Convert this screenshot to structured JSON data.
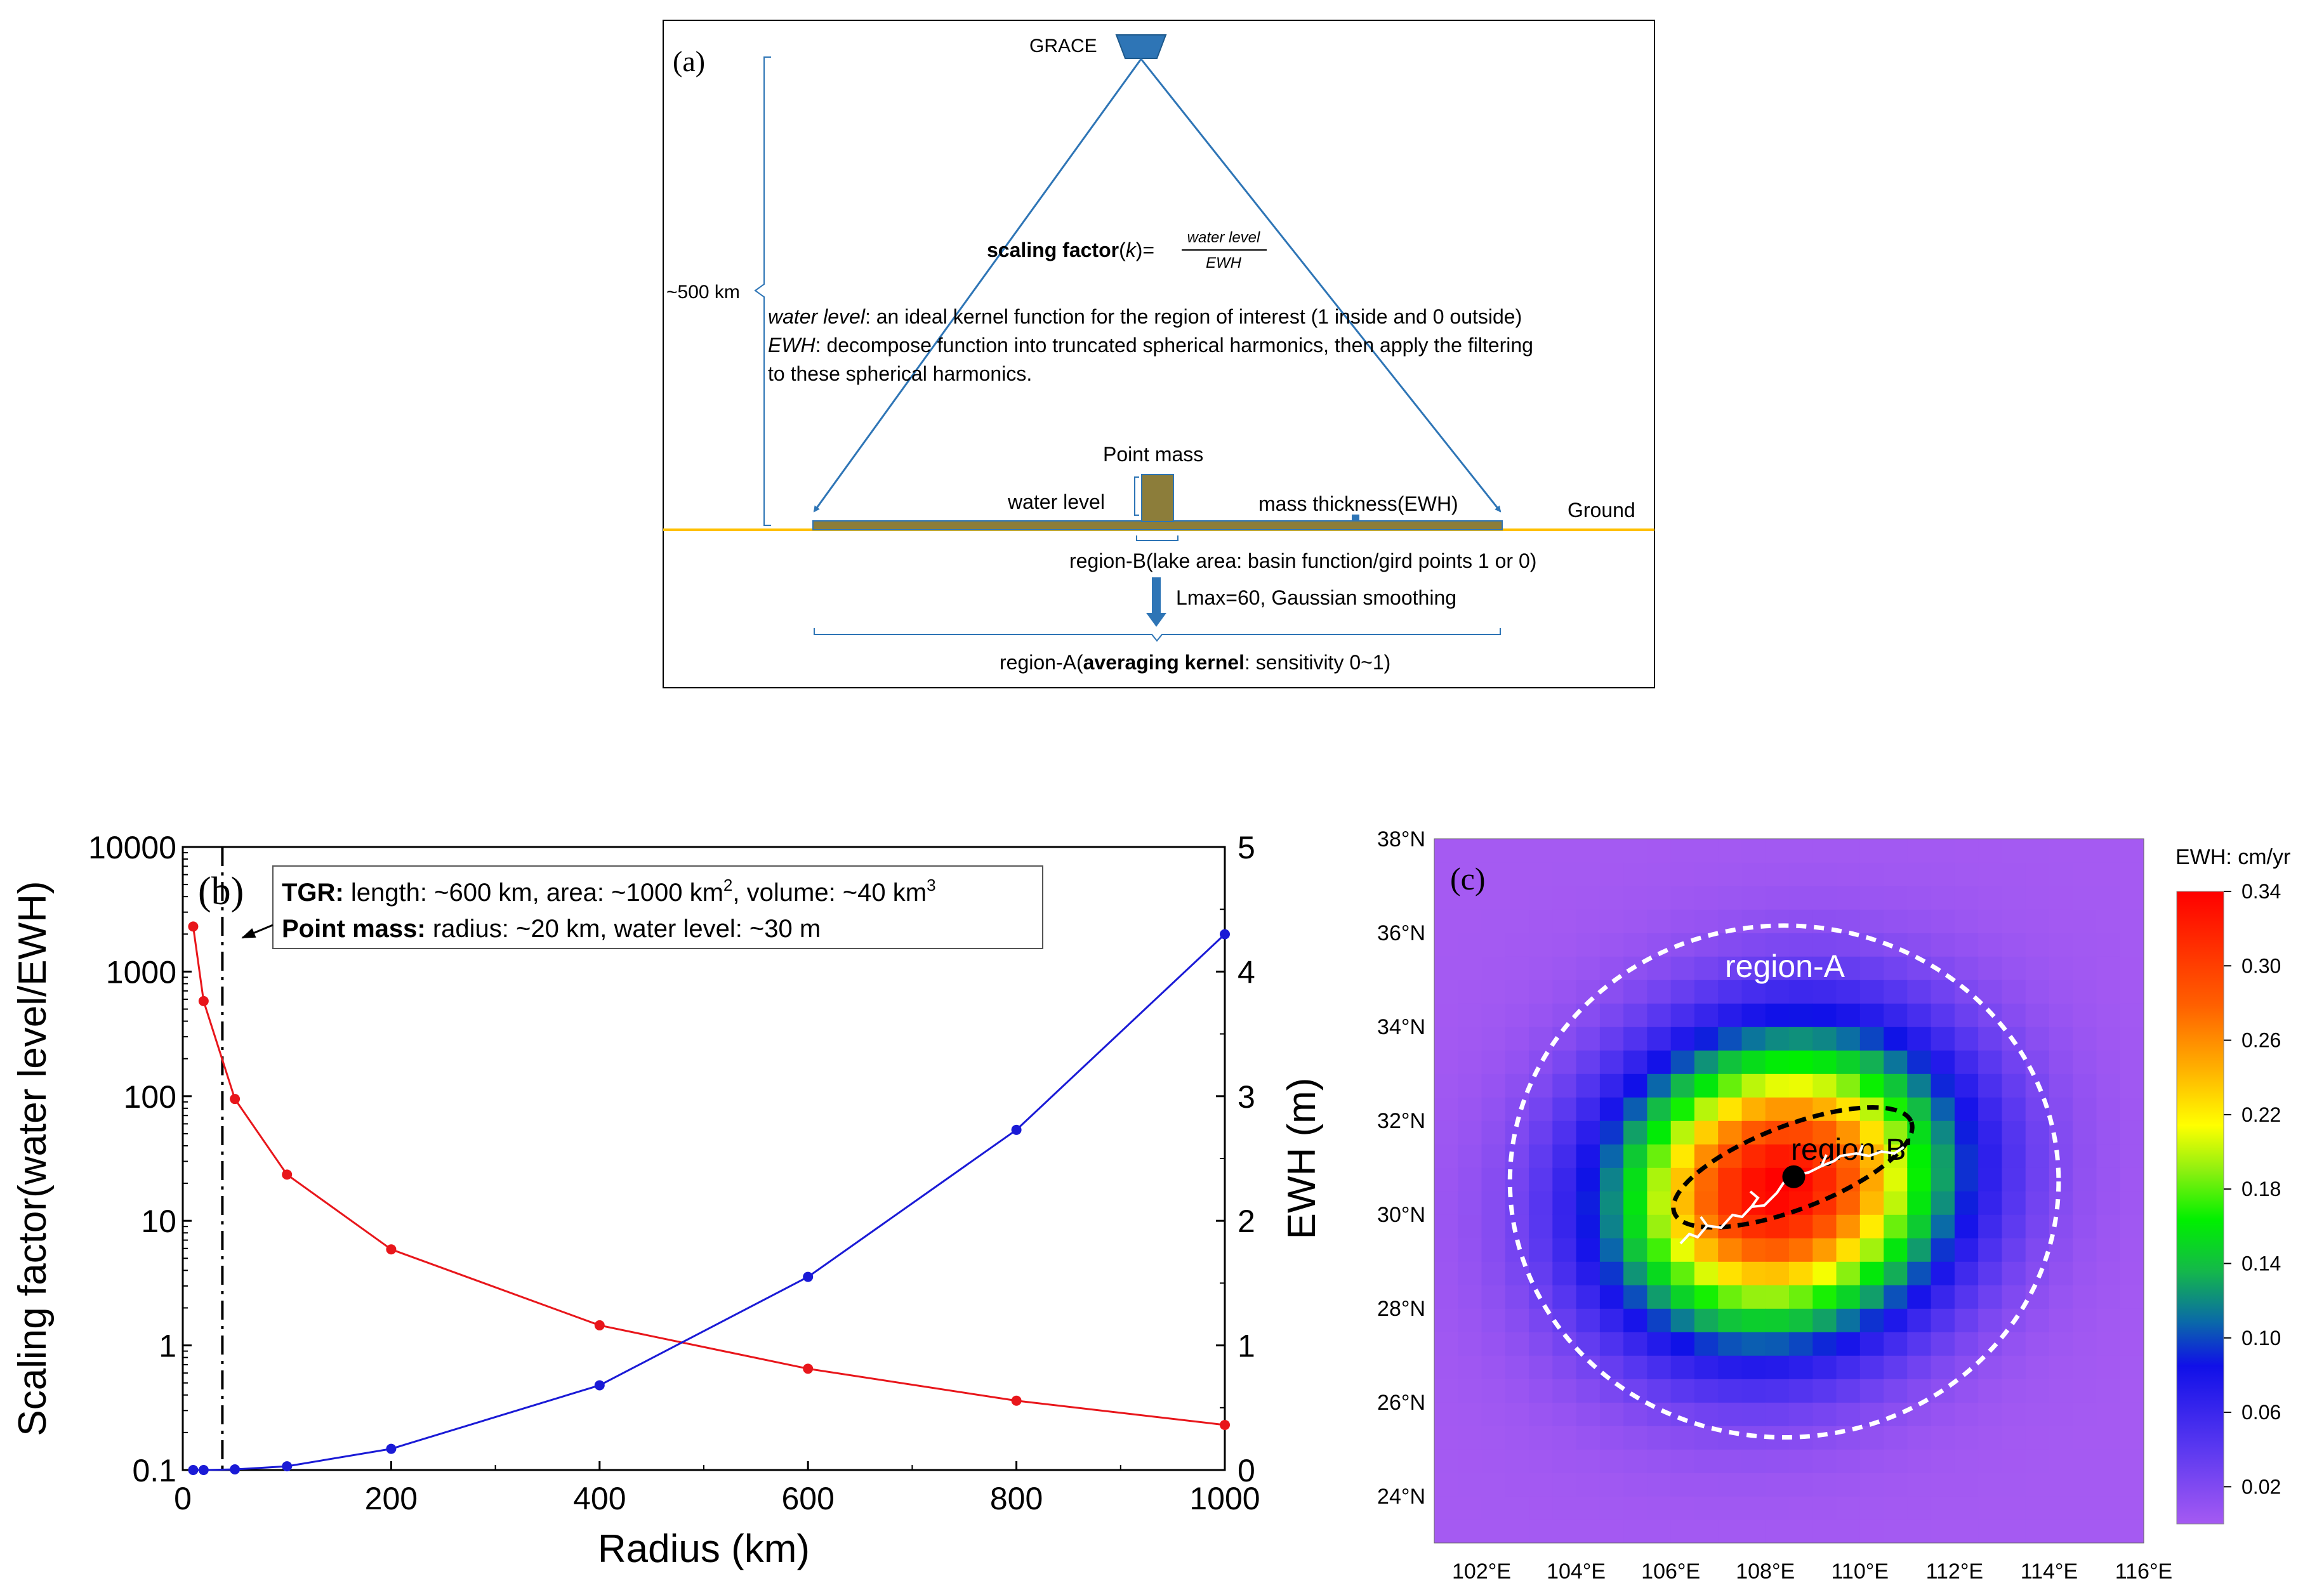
{
  "panel_a": {
    "label": "(a)",
    "satellite": "GRACE",
    "height_label": "~500 km",
    "sf_bold": "scaling factor",
    "sf_open": "(",
    "sf_k": "k",
    "sf_close": ")=",
    "frac_num": "water level",
    "frac_den": "EWH",
    "def1_term": "water level",
    "def1_text": ": an ideal kernel function for the region of interest (1 inside and 0 outside)",
    "def2_term": "EWH",
    "def2_text": ": decompose function into truncated spherical harmonics, then apply the filtering",
    "def2_cont": "to these spherical harmonics.",
    "point_mass": "Point mass",
    "water_level": "water level",
    "mass_thickness": "mass thickness(EWH)",
    "ground": "Ground",
    "region_b": "region-B(lake area: basin function/gird points 1 or 0)",
    "lmax": "Lmax=60, Gaussian smoothing",
    "region_a_pre": "region-A(",
    "region_a_bold": "averaging kernel",
    "region_a_post": ": sensitivity 0~1)"
  },
  "panel_b": {
    "label": "(b)",
    "legend": {
      "l1_bold": "TGR:",
      "l1_text": " length: ~600 km, area: ~1000 km",
      "l1_sup": "2",
      "l1_text2": ", volume: ~40 km",
      "l1_sup2": "3",
      "l2_bold": "Point mass:",
      "l2_text": " radius: ~20 km, water level: ~30 m"
    }
  },
  "chart_data": [
    {
      "type": "line",
      "title": "",
      "xlabel": "Radius (km)",
      "ylabel": "Scaling factor(water level/EWH)",
      "y2label": "EWH (m)",
      "xlim": [
        0,
        1000
      ],
      "ylim": [
        0.1,
        10000
      ],
      "yscale": "log",
      "y2lim": [
        0,
        5
      ],
      "xticks": [
        "0",
        "200",
        "400",
        "600",
        "800",
        "1000"
      ],
      "yticks": [
        "0.1",
        "1",
        "10",
        "100",
        "1000",
        "10000"
      ],
      "y2ticks": [
        "0",
        "1",
        "2",
        "3",
        "4",
        "5"
      ],
      "vline_x": 38,
      "series": [
        {
          "name": "Scaling factor",
          "axis": "left",
          "color": "#e8161b",
          "x": [
            10,
            20,
            50,
            100,
            200,
            400,
            600,
            800,
            1000
          ],
          "values": [
            2300,
            580,
            95,
            23.5,
            5.9,
            1.45,
            0.65,
            0.36,
            0.23
          ]
        },
        {
          "name": "EWH",
          "axis": "right",
          "color": "#1a1ad6",
          "x": [
            10,
            20,
            50,
            100,
            200,
            400,
            600,
            800,
            1000
          ],
          "values": [
            0.0,
            0.0,
            0.005,
            0.03,
            0.17,
            0.68,
            1.55,
            2.73,
            4.3
          ]
        }
      ]
    },
    {
      "type": "heatmap",
      "title": "",
      "label": "(c)",
      "colorbar_title": "EWH: cm/yr",
      "colorbar_ticks": [
        "0.02",
        "0.06",
        "0.10",
        "0.14",
        "0.18",
        "0.22",
        "0.26",
        "0.30",
        "0.34"
      ],
      "value_range": [
        0.0,
        0.34
      ],
      "xlim": [
        101,
        116
      ],
      "ylim": [
        23,
        38
      ],
      "xticks": [
        "102°E",
        "104°E",
        "106°E",
        "108°E",
        "110°E",
        "112°E",
        "114°E",
        "116°E"
      ],
      "yticks": [
        "24°N",
        "26°N",
        "28°N",
        "30°N",
        "32°N",
        "34°N",
        "36°N",
        "38°N"
      ],
      "peak_value": 0.34,
      "peak_center": [
        108.3,
        30.6
      ],
      "region_a_label": "region-A",
      "region_b_label": "region-B'",
      "point_mass_location": [
        108.6,
        30.8
      ]
    }
  ],
  "colors": {
    "diagram_blue": "#2e75b6",
    "ground_orange": "#ffc000",
    "mass_olive": "#8c7d3a",
    "black": "#000000"
  }
}
